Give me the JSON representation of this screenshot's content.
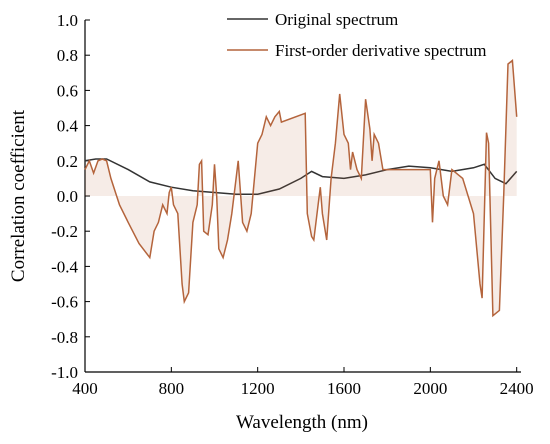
{
  "chart_data": {
    "type": "line",
    "xlabel": "Wavelength (nm)",
    "ylabel": "Correlation coefficient",
    "xlim": [
      400,
      2420
    ],
    "ylim": [
      -1,
      1
    ],
    "xticks": [
      400,
      800,
      1200,
      1600,
      2000,
      2400
    ],
    "yticks": [
      {
        "value": 1,
        "label": "1.0"
      },
      0.8,
      0.6,
      0.4,
      0.2,
      {
        "value": 0,
        "label": "0.0"
      },
      -0.2,
      -0.4,
      -0.6,
      -0.8,
      {
        "value": -1,
        "label": "-1.0"
      }
    ],
    "legend": "top-right",
    "series": [
      {
        "name": "Original spectrum",
        "color": "#333333",
        "x": [
          400,
          450,
          500,
          600,
          700,
          800,
          900,
          1000,
          1100,
          1200,
          1300,
          1400,
          1450,
          1500,
          1600,
          1700,
          1800,
          1900,
          2000,
          2100,
          2200,
          2250,
          2300,
          2350,
          2400
        ],
        "values": [
          0.2,
          0.21,
          0.21,
          0.15,
          0.08,
          0.05,
          0.03,
          0.02,
          0.01,
          0.01,
          0.04,
          0.1,
          0.14,
          0.11,
          0.1,
          0.12,
          0.15,
          0.17,
          0.16,
          0.14,
          0.16,
          0.18,
          0.1,
          0.07,
          0.14
        ]
      },
      {
        "name": "First-order derivative spectrum",
        "color": "#b4643c",
        "x": [
          400,
          420,
          440,
          460,
          480,
          500,
          520,
          560,
          600,
          650,
          700,
          720,
          740,
          760,
          780,
          790,
          800,
          810,
          830,
          850,
          860,
          880,
          900,
          920,
          930,
          940,
          950,
          970,
          990,
          1000,
          1010,
          1020,
          1040,
          1060,
          1080,
          1100,
          1110,
          1130,
          1150,
          1170,
          1200,
          1220,
          1240,
          1260,
          1280,
          1300,
          1310,
          1420,
          1430,
          1450,
          1460,
          1480,
          1490,
          1500,
          1520,
          1540,
          1560,
          1580,
          1600,
          1620,
          1630,
          1640,
          1660,
          1680,
          1700,
          1720,
          1730,
          1740,
          1760,
          1780,
          1800,
          2000,
          2010,
          2020,
          2040,
          2060,
          2080,
          2100,
          2150,
          2200,
          2230,
          2240,
          2260,
          2270,
          2290,
          2320,
          2340,
          2360,
          2380,
          2400
        ],
        "values": [
          0.15,
          0.2,
          0.13,
          0.2,
          0.21,
          0.2,
          0.1,
          -0.05,
          -0.15,
          -0.27,
          -0.35,
          -0.2,
          -0.15,
          -0.05,
          -0.1,
          0.02,
          0.05,
          -0.05,
          -0.1,
          -0.5,
          -0.6,
          -0.55,
          -0.15,
          -0.05,
          0.18,
          0.2,
          -0.2,
          -0.22,
          -0.05,
          0.18,
          0.0,
          -0.3,
          -0.35,
          -0.25,
          -0.1,
          0.1,
          0.2,
          -0.15,
          -0.2,
          -0.1,
          0.3,
          0.35,
          0.45,
          0.4,
          0.45,
          0.48,
          0.42,
          0.47,
          -0.1,
          -0.23,
          -0.25,
          -0.05,
          0.05,
          -0.1,
          -0.25,
          0.1,
          0.3,
          0.58,
          0.35,
          0.3,
          0.15,
          0.25,
          0.15,
          0.1,
          0.55,
          0.38,
          0.2,
          0.35,
          0.3,
          0.15,
          0.15,
          0.15,
          -0.15,
          0.1,
          0.2,
          0.0,
          -0.05,
          0.15,
          0.1,
          -0.1,
          -0.5,
          -0.58,
          0.36,
          0.3,
          -0.68,
          -0.65,
          0.0,
          0.75,
          0.77,
          0.45
        ]
      }
    ]
  }
}
